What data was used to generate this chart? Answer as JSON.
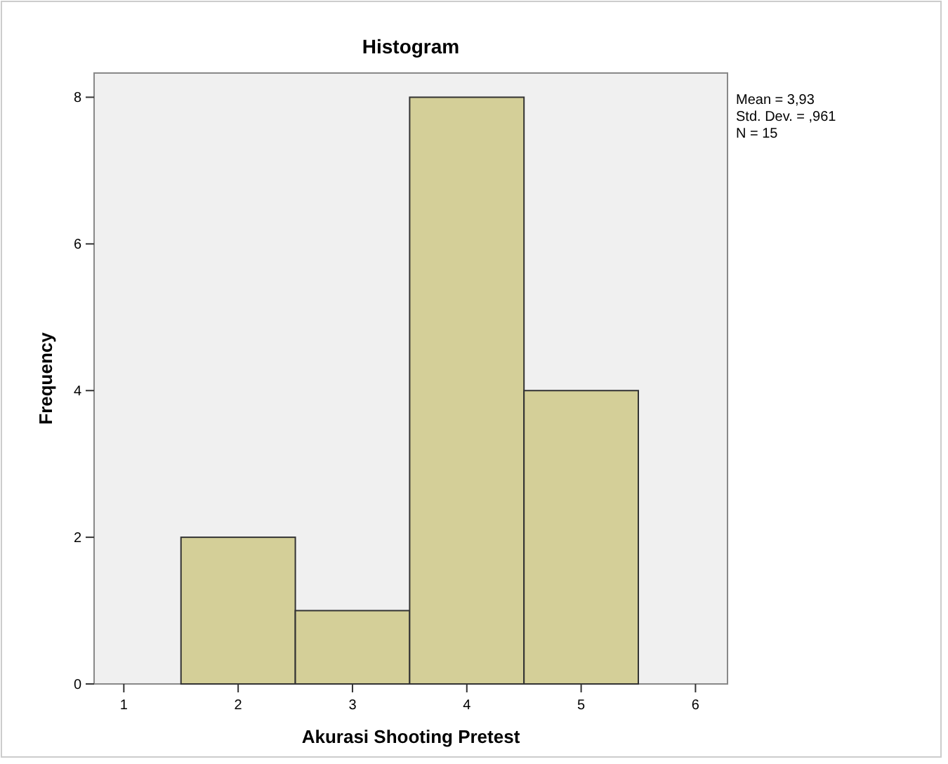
{
  "chart_data": {
    "type": "histogram",
    "title": "Histogram",
    "xlabel": "Akurasi Shooting Pretest",
    "ylabel": "Frequency",
    "bins": [
      1.5,
      2.5,
      3.5,
      4.5,
      5.5
    ],
    "values": [
      2,
      1,
      8,
      4
    ],
    "color": "#d4cf98",
    "xlim": [
      0.74,
      6.28
    ],
    "xticks": [
      1,
      2,
      3,
      4,
      5,
      6
    ],
    "ylim": [
      0,
      8.33
    ],
    "yticks": [
      0,
      2,
      4,
      6,
      8
    ],
    "grid": false,
    "annotations": [
      "Mean = 3,93",
      "Std. Dev. = ,961",
      "N = 15"
    ]
  }
}
